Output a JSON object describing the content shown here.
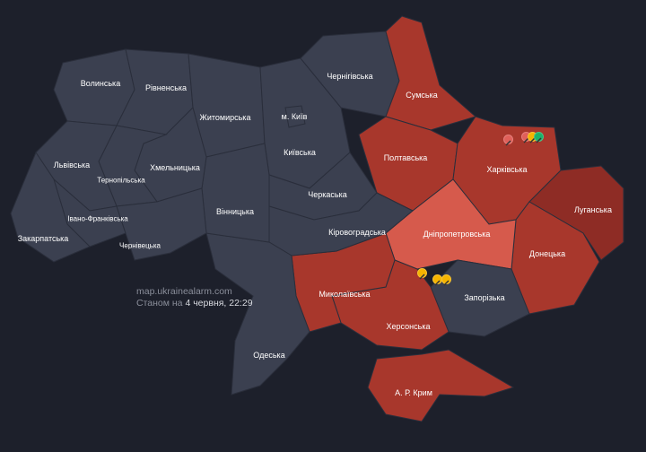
{
  "watermark": {
    "site": "map.ukrainealarm.com",
    "status_prefix": "Станом на",
    "status_date": "4 червня, 22:29"
  },
  "colors": {
    "background": "#1d202b",
    "no_alert": "#3b4050",
    "alert": "#a8372c",
    "alert_dark": "#8e2c25",
    "alert_light": "#d65a4c"
  },
  "regions": [
    {
      "id": "volyn",
      "name": "Волинська",
      "status": "no_alert"
    },
    {
      "id": "rivne",
      "name": "Рівненська",
      "status": "no_alert"
    },
    {
      "id": "zhytomyr",
      "name": "Житомирська",
      "status": "no_alert"
    },
    {
      "id": "kyiv-oblast",
      "name": "Київська",
      "status": "no_alert"
    },
    {
      "id": "kyiv-city",
      "name": "м. Київ",
      "status": "no_alert"
    },
    {
      "id": "chernihiv",
      "name": "Чернігівська",
      "status": "no_alert"
    },
    {
      "id": "sumy",
      "name": "Сумська",
      "status": "alert"
    },
    {
      "id": "poltava",
      "name": "Полтавська",
      "status": "alert"
    },
    {
      "id": "kharkiv",
      "name": "Харківська",
      "status": "alert"
    },
    {
      "id": "luhansk",
      "name": "Луганська",
      "status": "alert_dark"
    },
    {
      "id": "donetsk",
      "name": "Донецька",
      "status": "alert"
    },
    {
      "id": "dnipro",
      "name": "Дніпропетровська",
      "status": "alert_light"
    },
    {
      "id": "zaporizhzhia",
      "name": "Запорізька",
      "status": "no_alert"
    },
    {
      "id": "kherson",
      "name": "Херсонська",
      "status": "alert"
    },
    {
      "id": "mykolaiv",
      "name": "Миколаївська",
      "status": "alert"
    },
    {
      "id": "crimea",
      "name": "А. Р. Крим",
      "status": "alert"
    },
    {
      "id": "cherkasy",
      "name": "Черкаська",
      "status": "no_alert"
    },
    {
      "id": "kirovohrad",
      "name": "Кіровоградська",
      "status": "no_alert"
    },
    {
      "id": "odesa",
      "name": "Одеська",
      "status": "no_alert"
    },
    {
      "id": "vinnytsia",
      "name": "Вінницька",
      "status": "no_alert"
    },
    {
      "id": "khmelnytskyi",
      "name": "Хмельницька",
      "status": "no_alert"
    },
    {
      "id": "ternopil",
      "name": "Тернопільська",
      "status": "no_alert"
    },
    {
      "id": "lviv",
      "name": "Львівська",
      "status": "no_alert"
    },
    {
      "id": "ivano-frankivsk",
      "name": "Івано-Франківська",
      "status": "no_alert"
    },
    {
      "id": "chernivtsi",
      "name": "Чернівецька",
      "status": "no_alert"
    },
    {
      "id": "zakarpattia",
      "name": "Закарпатська",
      "status": "no_alert"
    }
  ],
  "alert_icons": [
    {
      "region": "kharkiv",
      "type": "artillery",
      "color": "#e0605a"
    },
    {
      "region": "kharkiv",
      "type": "artillery",
      "color": "#e0605a"
    },
    {
      "region": "kharkiv",
      "type": "air-raid",
      "color": "#f5b400"
    },
    {
      "region": "kharkiv",
      "type": "all-clear",
      "color": "#1bb36a"
    },
    {
      "region": "dnipro",
      "type": "artillery",
      "color": "#f5b400"
    },
    {
      "region": "dnipro",
      "type": "artillery",
      "color": "#f5b400"
    },
    {
      "region": "dnipro",
      "type": "artillery",
      "color": "#f5b400"
    }
  ]
}
